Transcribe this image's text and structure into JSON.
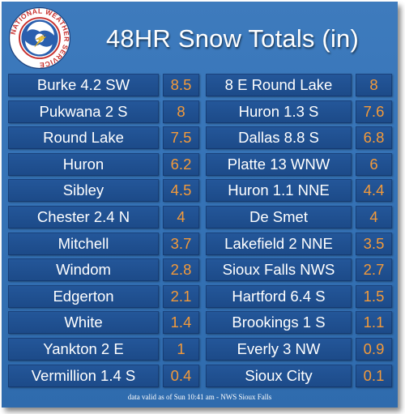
{
  "title": "48HR Snow Totals (in)",
  "logo": {
    "icon": "nws-logo-icon",
    "ring_text": "NATIONAL WEATHER SERVICE"
  },
  "colors": {
    "background": "#3674b8",
    "cell": "#1f4f8f",
    "value_text": "#f39a3a",
    "label_text": "#ffffff"
  },
  "left_column": [
    {
      "location": "Burke 4.2 SW",
      "value": "8.5"
    },
    {
      "location": "Pukwana 2 S",
      "value": "8"
    },
    {
      "location": "Round Lake",
      "value": "7.5"
    },
    {
      "location": "Huron",
      "value": "6.2"
    },
    {
      "location": "Sibley",
      "value": "4.5"
    },
    {
      "location": "Chester 2.4 N",
      "value": "4"
    },
    {
      "location": "Mitchell",
      "value": "3.7"
    },
    {
      "location": "Windom",
      "value": "2.8"
    },
    {
      "location": "Edgerton",
      "value": "2.1"
    },
    {
      "location": "White",
      "value": "1.4"
    },
    {
      "location": "Yankton 2 E",
      "value": "1"
    },
    {
      "location": "Vermillion 1.4 S",
      "value": "0.4"
    }
  ],
  "right_column": [
    {
      "location": "8 E Round Lake",
      "value": "8"
    },
    {
      "location": "Huron 1.3 S",
      "value": "7.6"
    },
    {
      "location": "Dallas 8.8 S",
      "value": "6.8"
    },
    {
      "location": "Platte 13 WNW",
      "value": "6"
    },
    {
      "location": "Huron 1.1 NNE",
      "value": "4.4"
    },
    {
      "location": "De Smet",
      "value": "4"
    },
    {
      "location": "Lakefield 2 NNE",
      "value": "3.5"
    },
    {
      "location": "Sioux Falls NWS",
      "value": "2.7"
    },
    {
      "location": "Hartford 6.4 S",
      "value": "1.5"
    },
    {
      "location": "Brookings 1 S",
      "value": "1.1"
    },
    {
      "location": "Everly 3 NW",
      "value": "0.9"
    },
    {
      "location": "Sioux City",
      "value": "0.1"
    }
  ],
  "footer": "data valid as of Sun 10:41 am - NWS Sioux Falls"
}
